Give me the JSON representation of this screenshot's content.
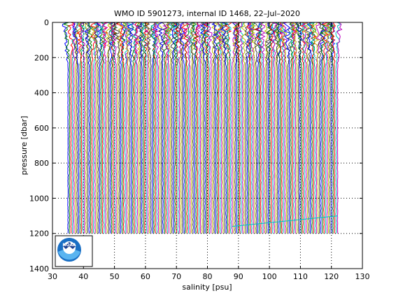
{
  "chart_data": {
    "type": "line",
    "title": "WMO ID 5901273, internal ID 1468, 22–Jul–2020",
    "xlabel": "salinity [psu]",
    "ylabel": "pressure [dbar]",
    "xlim": [
      30,
      130
    ],
    "ylim": [
      0,
      1400
    ],
    "y_reversed": true,
    "grid": true,
    "xticks": [
      "30",
      "40",
      "50",
      "60",
      "70",
      "80",
      "90",
      "100",
      "110",
      "120",
      "130"
    ],
    "yticks": [
      "0",
      "200",
      "400",
      "600",
      "800",
      "1000",
      "1200",
      "1400"
    ],
    "profiles": {
      "description_note": "",
      "count": 180,
      "first_offset": 35.0,
      "last_offset": 122.0,
      "pressure_max": 1200,
      "colors": [
        "#0000ff",
        "#008000",
        "#ff0000",
        "#00bfbf",
        "#bf00bf",
        "#bfbf00",
        "#404040"
      ]
    },
    "stray_line": {
      "x": [
        88,
        122
      ],
      "y": [
        1160,
        1100
      ],
      "color": "#00bfbf"
    }
  },
  "logo": {
    "text": "NOAA"
  }
}
